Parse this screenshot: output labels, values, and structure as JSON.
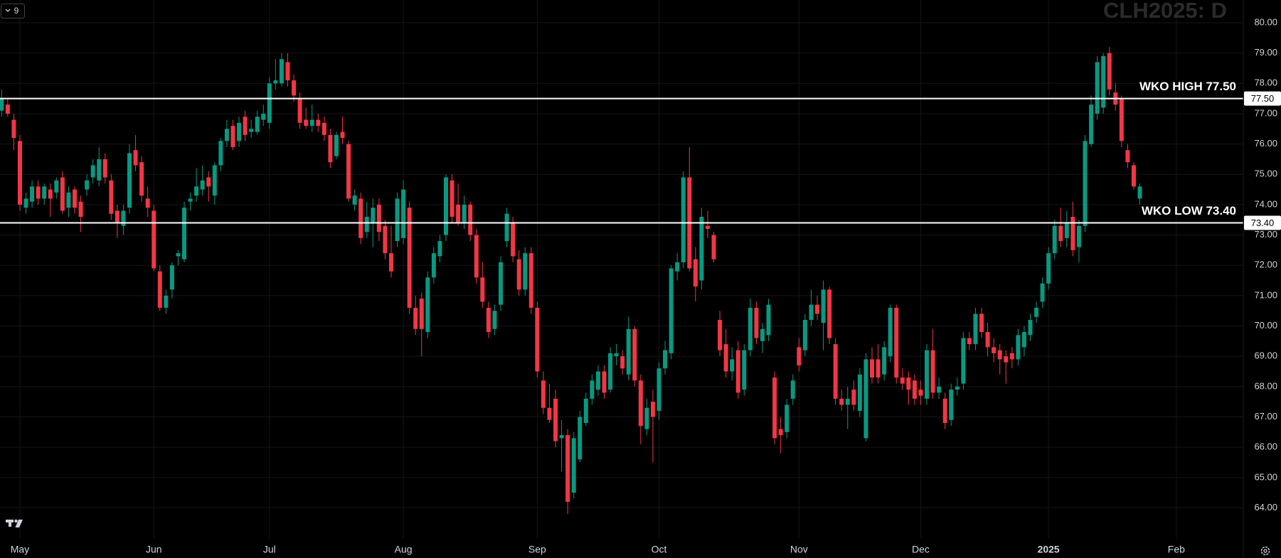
{
  "toolbar": {
    "badge": "9"
  },
  "chart_data": {
    "type": "candlestick",
    "title": "CLH2025: D",
    "up_color": "#089981",
    "down_color": "#f23645",
    "grid": true,
    "ylim": [
      62.98,
      80.75
    ],
    "yticks": [
      {
        "value": 64,
        "label": "64.00"
      },
      {
        "value": 65,
        "label": "65.00"
      },
      {
        "value": 66,
        "label": "66.00"
      },
      {
        "value": 67,
        "label": "67.00"
      },
      {
        "value": 68,
        "label": "68.00"
      },
      {
        "value": 69,
        "label": "69.00"
      },
      {
        "value": 70,
        "label": "70.00"
      },
      {
        "value": 71,
        "label": "71.00"
      },
      {
        "value": 72,
        "label": "72.00"
      },
      {
        "value": 73,
        "label": "73.00"
      },
      {
        "value": 74,
        "label": "74.00"
      },
      {
        "value": 75,
        "label": "75.00"
      },
      {
        "value": 76,
        "label": "76.00"
      },
      {
        "value": 77,
        "label": "77.00"
      },
      {
        "value": 78,
        "label": "78.00"
      },
      {
        "value": 79,
        "label": "79.00"
      },
      {
        "value": 80,
        "label": "80.00"
      }
    ],
    "hlines": [
      {
        "value": 77.5,
        "label": "WKO HIGH 77.50",
        "price_label": "77.50",
        "color": "#ffffff"
      },
      {
        "value": 73.4,
        "label": "WKO LOW 73.40",
        "price_label": "73.40",
        "color": "#ffffff"
      }
    ],
    "categories": [
      null,
      null,
      null,
      "May",
      null,
      null,
      null,
      null,
      null,
      null,
      null,
      null,
      null,
      null,
      null,
      null,
      null,
      null,
      null,
      null,
      null,
      null,
      null,
      null,
      null,
      "Jun",
      null,
      null,
      null,
      null,
      null,
      null,
      null,
      null,
      null,
      null,
      null,
      null,
      null,
      null,
      null,
      null,
      null,
      null,
      "Jul",
      null,
      null,
      null,
      null,
      null,
      null,
      null,
      null,
      null,
      null,
      null,
      null,
      null,
      null,
      null,
      null,
      null,
      null,
      null,
      null,
      null,
      "Aug",
      null,
      null,
      null,
      null,
      null,
      null,
      null,
      null,
      null,
      null,
      null,
      null,
      null,
      null,
      null,
      null,
      null,
      null,
      null,
      null,
      null,
      "Sep",
      null,
      null,
      null,
      null,
      null,
      null,
      null,
      null,
      null,
      null,
      null,
      null,
      null,
      null,
      null,
      null,
      null,
      null,
      null,
      "Oct",
      null,
      null,
      null,
      null,
      null,
      null,
      null,
      null,
      null,
      null,
      null,
      null,
      null,
      null,
      null,
      null,
      null,
      null,
      null,
      null,
      null,
      null,
      "Nov",
      null,
      null,
      null,
      null,
      null,
      null,
      null,
      null,
      null,
      null,
      null,
      null,
      null,
      null,
      null,
      null,
      null,
      null,
      null,
      "Dec",
      null,
      null,
      null,
      null,
      null,
      null,
      null,
      null,
      null,
      null,
      null,
      null,
      null,
      null,
      null,
      null,
      null,
      null,
      null,
      null,
      "2025",
      null,
      null,
      null,
      null,
      null,
      null,
      null,
      null,
      null,
      null,
      null,
      null,
      null,
      null,
      null,
      null,
      null,
      null,
      null,
      null,
      "Feb",
      null,
      null,
      null,
      null,
      null,
      null,
      null,
      null,
      null,
      null,
      null
    ],
    "ohlc": [
      [
        77.1,
        77.8,
        76.9,
        77.5
      ],
      [
        77.3,
        77.5,
        76.9,
        77.0
      ],
      [
        76.8,
        77.0,
        75.8,
        76.2
      ],
      [
        76.1,
        76.3,
        73.8,
        74.0
      ],
      [
        73.9,
        74.4,
        73.7,
        74.2
      ],
      [
        74.1,
        74.8,
        73.9,
        74.6
      ],
      [
        74.6,
        74.8,
        74.0,
        74.2
      ],
      [
        74.2,
        74.7,
        74.0,
        74.6
      ],
      [
        74.5,
        74.7,
        73.6,
        74.2
      ],
      [
        74.4,
        74.9,
        74.2,
        74.8
      ],
      [
        74.9,
        75.1,
        73.7,
        73.8
      ],
      [
        73.9,
        74.6,
        73.6,
        74.4
      ],
      [
        74.5,
        74.6,
        73.7,
        73.9
      ],
      [
        74.1,
        74.3,
        73.1,
        73.6
      ],
      [
        74.5,
        75.0,
        74.3,
        74.8
      ],
      [
        74.9,
        75.5,
        74.7,
        75.3
      ],
      [
        74.8,
        75.9,
        74.6,
        75.5
      ],
      [
        75.5,
        75.7,
        74.7,
        74.9
      ],
      [
        74.8,
        75.0,
        73.5,
        73.7
      ],
      [
        73.8,
        74.0,
        72.9,
        73.4
      ],
      [
        73.3,
        74.0,
        73.0,
        73.8
      ],
      [
        73.9,
        76.0,
        73.7,
        75.7
      ],
      [
        75.8,
        76.3,
        75.1,
        75.3
      ],
      [
        75.4,
        75.6,
        74.1,
        74.3
      ],
      [
        74.2,
        74.6,
        73.6,
        73.9
      ],
      [
        73.8,
        74.0,
        71.8,
        71.9
      ],
      [
        71.8,
        72.0,
        70.5,
        70.6
      ],
      [
        70.6,
        71.2,
        70.4,
        71.0
      ],
      [
        71.2,
        72.1,
        70.9,
        72.0
      ],
      [
        72.3,
        72.5,
        72.0,
        72.4
      ],
      [
        72.2,
        74.1,
        72.1,
        73.9
      ],
      [
        74.1,
        74.4,
        73.8,
        74.2
      ],
      [
        74.3,
        75.2,
        74.1,
        74.6
      ],
      [
        74.5,
        75.3,
        74.3,
        74.8
      ],
      [
        74.9,
        75.1,
        74.1,
        74.6
      ],
      [
        74.3,
        75.4,
        74.0,
        75.3
      ],
      [
        75.3,
        76.2,
        75.1,
        76.1
      ],
      [
        76.1,
        76.8,
        75.9,
        76.5
      ],
      [
        76.6,
        76.8,
        75.8,
        75.9
      ],
      [
        76.1,
        76.9,
        75.9,
        76.7
      ],
      [
        76.9,
        77.1,
        76.1,
        76.3
      ],
      [
        76.4,
        76.8,
        76.2,
        76.5
      ],
      [
        76.4,
        77.1,
        76.3,
        76.9
      ],
      [
        76.8,
        77.3,
        76.6,
        77.0
      ],
      [
        76.7,
        78.2,
        76.5,
        78.0
      ],
      [
        78.0,
        78.8,
        77.8,
        78.1
      ],
      [
        78.0,
        79.0,
        77.9,
        78.8
      ],
      [
        78.7,
        79.0,
        77.9,
        78.1
      ],
      [
        78.1,
        78.3,
        77.4,
        77.6
      ],
      [
        77.5,
        77.7,
        76.5,
        76.7
      ],
      [
        76.8,
        77.2,
        76.5,
        76.6
      ],
      [
        76.6,
        77.3,
        76.4,
        76.8
      ],
      [
        76.8,
        77.0,
        76.4,
        76.6
      ],
      [
        76.7,
        76.9,
        76.1,
        76.3
      ],
      [
        76.3,
        76.5,
        75.2,
        75.4
      ],
      [
        75.6,
        76.4,
        75.5,
        76.3
      ],
      [
        76.4,
        76.9,
        76.0,
        76.2
      ],
      [
        76.0,
        76.1,
        74.1,
        74.2
      ],
      [
        74.0,
        74.5,
        73.8,
        74.3
      ],
      [
        74.2,
        74.4,
        72.7,
        72.9
      ],
      [
        73.1,
        74.1,
        72.9,
        73.6
      ],
      [
        73.4,
        74.2,
        72.6,
        73.9
      ],
      [
        74.0,
        74.2,
        72.8,
        73.1
      ],
      [
        73.3,
        73.5,
        72.2,
        72.4
      ],
      [
        72.4,
        73.3,
        71.6,
        71.8
      ],
      [
        72.8,
        74.4,
        72.6,
        74.2
      ],
      [
        72.9,
        74.8,
        72.7,
        74.5
      ],
      [
        73.9,
        74.1,
        70.4,
        70.6
      ],
      [
        70.6,
        71.0,
        69.7,
        69.9
      ],
      [
        70.9,
        71.1,
        69.0,
        69.9
      ],
      [
        69.8,
        71.8,
        69.6,
        71.6
      ],
      [
        71.6,
        72.6,
        71.4,
        72.4
      ],
      [
        72.3,
        73.0,
        72.1,
        72.8
      ],
      [
        73.0,
        75.0,
        72.8,
        74.9
      ],
      [
        74.8,
        75.0,
        73.4,
        73.6
      ],
      [
        74.0,
        74.7,
        73.3,
        73.4
      ],
      [
        73.4,
        74.3,
        73.2,
        74.0
      ],
      [
        74.0,
        74.1,
        72.8,
        73.0
      ],
      [
        73.0,
        73.2,
        71.4,
        71.6
      ],
      [
        71.6,
        72.1,
        70.6,
        70.8
      ],
      [
        70.6,
        70.8,
        69.6,
        69.8
      ],
      [
        69.9,
        70.7,
        69.7,
        70.5
      ],
      [
        70.7,
        72.3,
        70.5,
        72.1
      ],
      [
        72.8,
        73.9,
        72.6,
        73.7
      ],
      [
        73.4,
        73.6,
        72.1,
        72.3
      ],
      [
        72.2,
        72.5,
        71.0,
        71.2
      ],
      [
        71.2,
        72.6,
        71.0,
        72.4
      ],
      [
        72.4,
        72.6,
        70.4,
        70.6
      ],
      [
        70.6,
        70.8,
        68.3,
        68.5
      ],
      [
        68.2,
        68.5,
        67.1,
        67.3
      ],
      [
        67.3,
        68.1,
        66.8,
        66.9
      ],
      [
        67.6,
        67.9,
        66.0,
        66.2
      ],
      [
        66.3,
        66.9,
        65.2,
        66.4
      ],
      [
        66.4,
        66.6,
        63.8,
        64.2
      ],
      [
        64.5,
        66.5,
        64.3,
        66.3
      ],
      [
        65.6,
        67.2,
        65.5,
        67.0
      ],
      [
        66.8,
        67.8,
        66.7,
        67.6
      ],
      [
        67.6,
        68.4,
        67.4,
        68.2
      ],
      [
        67.9,
        68.7,
        67.7,
        68.5
      ],
      [
        68.5,
        68.7,
        67.6,
        67.8
      ],
      [
        67.9,
        69.3,
        67.8,
        69.1
      ],
      [
        69.0,
        69.4,
        68.7,
        69.1
      ],
      [
        69.0,
        69.2,
        68.4,
        68.6
      ],
      [
        68.4,
        70.3,
        68.2,
        69.9
      ],
      [
        69.9,
        70.0,
        68.0,
        68.2
      ],
      [
        68.2,
        68.4,
        66.1,
        66.7
      ],
      [
        66.6,
        67.6,
        66.4,
        67.3
      ],
      [
        67.5,
        67.9,
        65.5,
        67.0
      ],
      [
        67.2,
        68.8,
        66.9,
        68.6
      ],
      [
        68.6,
        69.5,
        68.4,
        69.2
      ],
      [
        69.1,
        72.0,
        68.9,
        71.9
      ],
      [
        71.8,
        72.4,
        71.5,
        72.1
      ],
      [
        72.1,
        75.1,
        71.9,
        74.9
      ],
      [
        74.9,
        75.9,
        71.8,
        71.9
      ],
      [
        72.2,
        72.6,
        70.8,
        71.3
      ],
      [
        71.5,
        73.9,
        71.2,
        73.6
      ],
      [
        73.3,
        73.8,
        72.9,
        73.2
      ],
      [
        73.0,
        73.1,
        72.1,
        72.2
      ],
      [
        70.2,
        70.5,
        69.0,
        69.2
      ],
      [
        69.4,
        69.9,
        68.3,
        68.5
      ],
      [
        68.5,
        69.3,
        68.2,
        68.9
      ],
      [
        69.2,
        69.5,
        67.6,
        67.8
      ],
      [
        67.9,
        69.4,
        67.7,
        69.2
      ],
      [
        69.2,
        70.9,
        69.0,
        70.6
      ],
      [
        70.6,
        70.8,
        69.4,
        69.6
      ],
      [
        69.5,
        70.1,
        69.1,
        69.9
      ],
      [
        69.7,
        70.9,
        69.5,
        70.7
      ],
      [
        68.3,
        68.5,
        66.1,
        66.3
      ],
      [
        66.6,
        67.0,
        65.8,
        66.4
      ],
      [
        66.5,
        67.6,
        66.3,
        67.4
      ],
      [
        67.6,
        68.4,
        67.4,
        68.2
      ],
      [
        69.3,
        69.6,
        68.5,
        68.7
      ],
      [
        69.2,
        70.4,
        69.0,
        70.2
      ],
      [
        70.2,
        71.2,
        70.0,
        70.7
      ],
      [
        70.7,
        71.0,
        70.2,
        70.4
      ],
      [
        70.1,
        71.5,
        69.2,
        71.2
      ],
      [
        71.2,
        71.3,
        69.4,
        69.6
      ],
      [
        69.4,
        69.6,
        67.4,
        67.6
      ],
      [
        67.6,
        67.9,
        67.2,
        67.4
      ],
      [
        67.4,
        68.0,
        66.6,
        67.6
      ],
      [
        67.9,
        68.2,
        67.2,
        67.4
      ],
      [
        67.2,
        68.6,
        67.0,
        68.4
      ],
      [
        66.3,
        69.1,
        66.2,
        68.9
      ],
      [
        68.9,
        69.3,
        68.1,
        68.3
      ],
      [
        68.9,
        69.4,
        68.1,
        68.3
      ],
      [
        68.4,
        69.5,
        68.2,
        69.3
      ],
      [
        69.0,
        70.7,
        68.8,
        70.6
      ],
      [
        70.6,
        70.7,
        68.1,
        68.3
      ],
      [
        68.3,
        68.6,
        67.9,
        68.1
      ],
      [
        68.3,
        68.5,
        67.4,
        67.9
      ],
      [
        68.2,
        68.4,
        67.4,
        67.6
      ],
      [
        67.9,
        68.2,
        67.4,
        67.7
      ],
      [
        67.6,
        69.4,
        67.4,
        69.2
      ],
      [
        69.2,
        69.9,
        67.6,
        67.8
      ],
      [
        67.8,
        68.3,
        67.6,
        68.0
      ],
      [
        67.6,
        67.8,
        66.6,
        66.8
      ],
      [
        66.9,
        68.1,
        66.7,
        67.9
      ],
      [
        67.9,
        68.3,
        67.7,
        68.0
      ],
      [
        68.1,
        69.8,
        67.9,
        69.6
      ],
      [
        69.6,
        69.8,
        69.2,
        69.4
      ],
      [
        69.4,
        70.6,
        69.2,
        70.4
      ],
      [
        70.4,
        70.6,
        69.6,
        69.8
      ],
      [
        69.8,
        70.1,
        69.0,
        69.3
      ],
      [
        69.3,
        69.6,
        68.8,
        69.1
      ],
      [
        69.2,
        69.4,
        68.4,
        68.9
      ],
      [
        69.0,
        69.2,
        68.1,
        68.8
      ],
      [
        69.1,
        69.3,
        68.6,
        68.9
      ],
      [
        68.9,
        69.9,
        68.7,
        69.7
      ],
      [
        69.3,
        70.0,
        69.0,
        69.8
      ],
      [
        69.7,
        70.4,
        69.5,
        70.2
      ],
      [
        70.3,
        70.8,
        70.1,
        70.6
      ],
      [
        70.8,
        71.6,
        70.6,
        71.4
      ],
      [
        71.4,
        72.6,
        71.2,
        72.4
      ],
      [
        72.4,
        73.5,
        72.2,
        73.3
      ],
      [
        73.3,
        73.9,
        72.6,
        72.8
      ],
      [
        72.9,
        73.8,
        72.6,
        73.4
      ],
      [
        73.6,
        74.1,
        72.3,
        72.5
      ],
      [
        72.6,
        73.5,
        72.1,
        73.3
      ],
      [
        73.3,
        76.3,
        73.1,
        76.1
      ],
      [
        76.0,
        77.6,
        75.9,
        77.3
      ],
      [
        77.0,
        78.9,
        76.8,
        78.7
      ],
      [
        77.2,
        79.0,
        77.0,
        78.9
      ],
      [
        79.0,
        79.2,
        77.6,
        77.8
      ],
      [
        77.7,
        78.0,
        77.1,
        77.3
      ],
      [
        77.5,
        77.6,
        75.9,
        76.1
      ],
      [
        75.8,
        76.0,
        75.2,
        75.4
      ],
      [
        75.3,
        75.4,
        74.5,
        74.6
      ],
      [
        74.2,
        74.7,
        74.0,
        74.6
      ],
      null,
      null,
      null,
      null,
      null,
      null,
      null,
      null,
      null,
      null,
      null,
      null,
      null,
      null,
      null,
      null,
      null
    ]
  }
}
